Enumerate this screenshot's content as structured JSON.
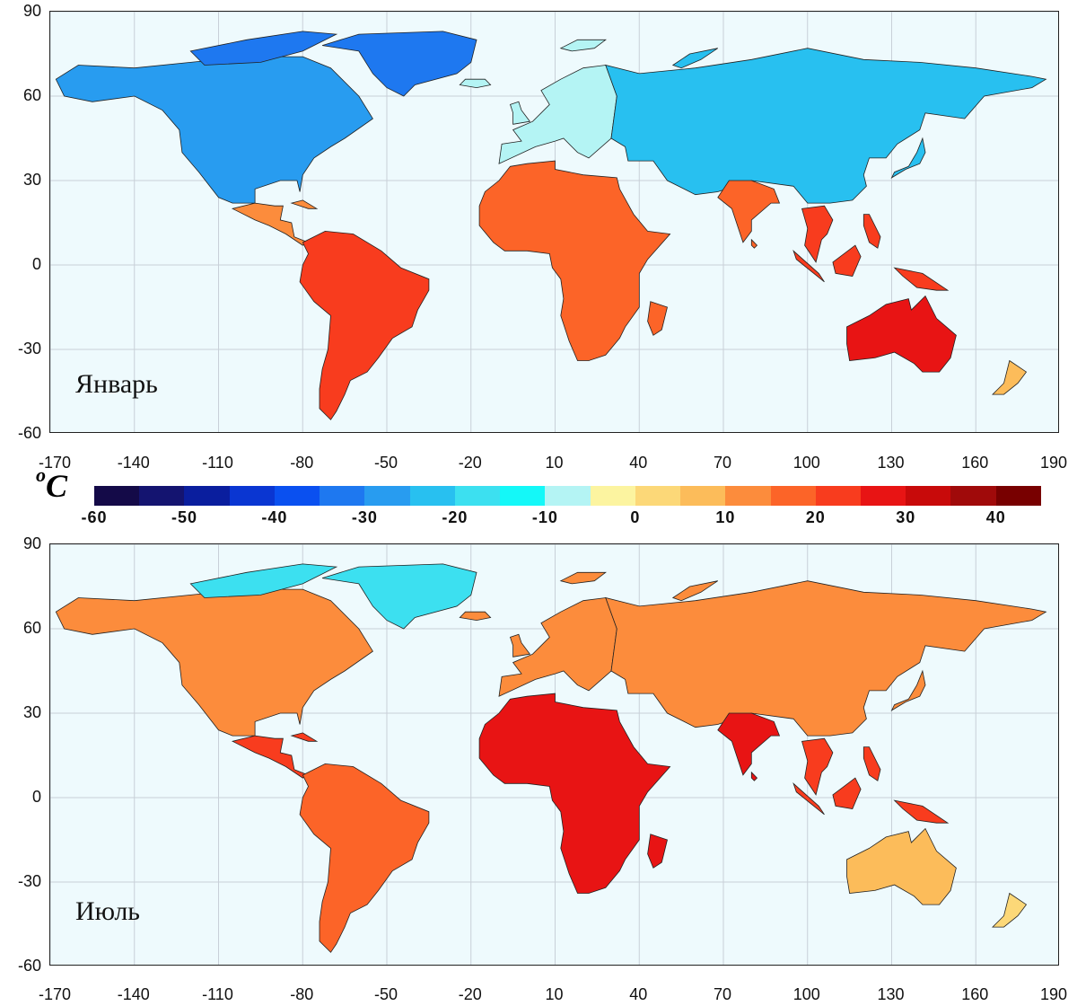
{
  "colorbar": {
    "unit": "C",
    "unit_sup": "o",
    "labels": [
      "-60",
      "-50",
      "-40",
      "-30",
      "-20",
      "-10",
      "0",
      "10",
      "20",
      "30",
      "40"
    ],
    "colors": [
      "#140a48",
      "#141470",
      "#0a1e9e",
      "#0a36d2",
      "#0a50f0",
      "#1e78f0",
      "#289cf0",
      "#28c0f0",
      "#3ce0f0",
      "#14f8f8",
      "#b4f4f4",
      "#fcf4a0",
      "#fcd878",
      "#fcbc5a",
      "#fc8c3c",
      "#fc6428",
      "#f83c1e",
      "#e81414",
      "#c80a0a",
      "#a00a0a",
      "#780000"
    ]
  },
  "panels": [
    {
      "month": "Январь",
      "y_ticks": [
        "90",
        "60",
        "30",
        "0",
        "-30",
        "-60"
      ],
      "x_ticks": [
        "-170",
        "-140",
        "-110",
        "-80",
        "-50",
        "-20",
        "10",
        "40",
        "70",
        "100",
        "130",
        "160",
        "190"
      ],
      "land_colors": {
        "greenland": "#1e78f0",
        "north_america": "#289cf0",
        "central_america": "#fc8c3c",
        "south_america": "#f83c1e",
        "europe": "#b4f4f4",
        "asia": "#28c0f0",
        "africa": "#fc6428",
        "india": "#fc6428",
        "se_asia": "#f83c1e",
        "australia": "#e81414",
        "new_zealand": "#fcbc5a"
      }
    },
    {
      "month": "Июль",
      "y_ticks": [
        "90",
        "60",
        "30",
        "0",
        "-30",
        "-60"
      ],
      "x_ticks": [
        "-170",
        "-140",
        "-110",
        "-80",
        "-50",
        "-20",
        "10",
        "40",
        "70",
        "100",
        "130",
        "160",
        "190"
      ],
      "land_colors": {
        "greenland": "#3ce0f0",
        "north_america": "#fc8c3c",
        "central_america": "#f83c1e",
        "south_america": "#fc6428",
        "europe": "#fc8c3c",
        "asia": "#fc8c3c",
        "africa": "#e81414",
        "india": "#e81414",
        "se_asia": "#f83c1e",
        "australia": "#fcbc5a",
        "new_zealand": "#fcd878"
      }
    }
  ]
}
